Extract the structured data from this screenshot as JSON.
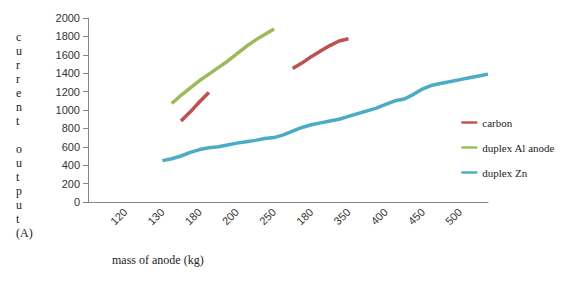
{
  "chart_data": {
    "type": "line",
    "x_label": "mass of anode (kg)",
    "y_label": "current output (A)",
    "categories": [
      null,
      null,
      null,
      null,
      "120",
      null,
      null,
      null,
      "130",
      null,
      null,
      null,
      "180",
      null,
      null,
      null,
      "200",
      null,
      null,
      null,
      "250",
      null,
      null,
      null,
      "180",
      null,
      null,
      null,
      "350",
      null,
      null,
      null,
      "400",
      null,
      null,
      null,
      "450",
      null,
      null,
      null,
      "500",
      null,
      null,
      null
    ],
    "series": [
      {
        "name": "carbon",
        "color": "#c0504d",
        "marker": "none",
        "line_style": "solid",
        "values": [
          null,
          null,
          null,
          null,
          null,
          null,
          null,
          null,
          null,
          null,
          880,
          980,
          1090,
          1190,
          null,
          null,
          null,
          null,
          null,
          null,
          null,
          null,
          1450,
          1510,
          1580,
          1640,
          1700,
          1750,
          1775,
          null,
          null,
          null,
          null,
          null,
          null,
          null,
          null,
          null,
          null,
          null,
          null,
          null,
          null,
          null
        ]
      },
      {
        "name": "duplex Al anode",
        "color": "#9bbb59",
        "marker": "none",
        "line_style": "solid",
        "values": [
          null,
          null,
          null,
          null,
          null,
          null,
          null,
          null,
          null,
          1070,
          1160,
          1240,
          1320,
          1390,
          1460,
          1530,
          1610,
          1690,
          1760,
          1820,
          1880,
          null,
          null,
          null,
          null,
          null,
          null,
          null,
          null,
          null,
          null,
          null,
          null,
          null,
          null,
          null,
          null,
          null,
          null,
          null,
          null,
          null,
          null,
          null
        ]
      },
      {
        "name": "duplex Zn",
        "color": "#4bacc6",
        "marker": "none",
        "line_style": "solid",
        "values": [
          null,
          null,
          null,
          null,
          null,
          null,
          null,
          null,
          450,
          470,
          500,
          540,
          570,
          590,
          600,
          620,
          640,
          655,
          670,
          690,
          700,
          730,
          770,
          810,
          840,
          860,
          880,
          900,
          930,
          960,
          990,
          1020,
          1060,
          1100,
          1120,
          1170,
          1230,
          1270,
          1290,
          1310,
          1330,
          1350,
          1370,
          1390
        ]
      }
    ],
    "ylim": [
      0,
      2000
    ],
    "yticks": [
      0,
      200,
      400,
      600,
      800,
      1000,
      1200,
      1400,
      1600,
      1800,
      2000
    ],
    "grid": false,
    "legend": "right"
  }
}
